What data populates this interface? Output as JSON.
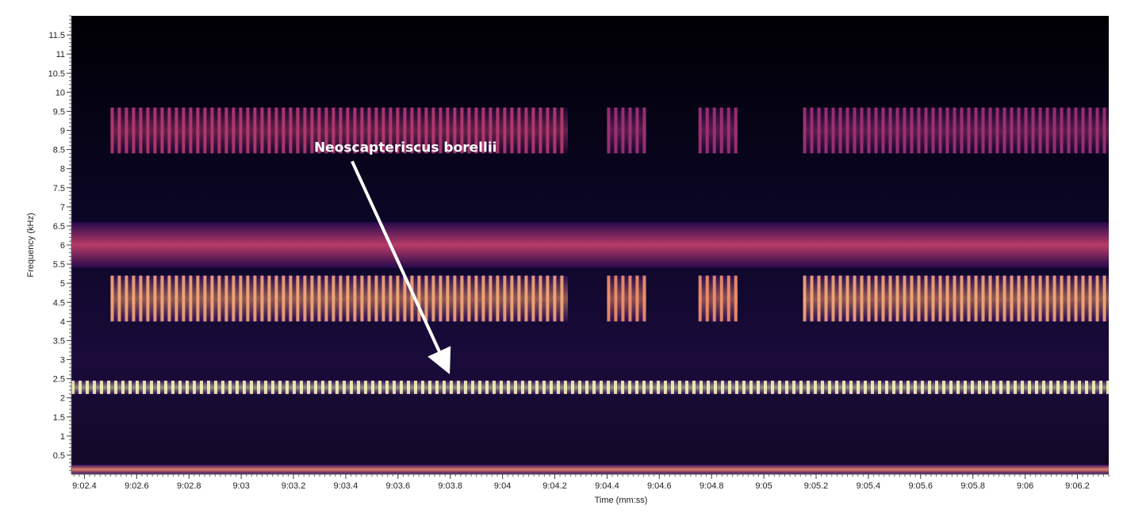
{
  "chart_data": {
    "type": "heatmap",
    "title": "",
    "xlabel": "Time (mm:ss)",
    "ylabel": "Frequency (kHz)",
    "xlim": [
      542.35,
      546.32
    ],
    "ylim": [
      0,
      12
    ],
    "x_ticks": [
      {
        "value": 542.4,
        "label": "9:02.4"
      },
      {
        "value": 542.6,
        "label": "9:02.6"
      },
      {
        "value": 542.8,
        "label": "9:02.8"
      },
      {
        "value": 543.0,
        "label": "9:03"
      },
      {
        "value": 543.2,
        "label": "9:03.2"
      },
      {
        "value": 543.4,
        "label": "9:03.4"
      },
      {
        "value": 543.6,
        "label": "9:03.6"
      },
      {
        "value": 543.8,
        "label": "9:03.8"
      },
      {
        "value": 544.0,
        "label": "9:04"
      },
      {
        "value": 544.2,
        "label": "9:04.2"
      },
      {
        "value": 544.4,
        "label": "9:04.4"
      },
      {
        "value": 544.6,
        "label": "9:04.6"
      },
      {
        "value": 544.8,
        "label": "9:04.8"
      },
      {
        "value": 545.0,
        "label": "9:05"
      },
      {
        "value": 545.2,
        "label": "9:05.2"
      },
      {
        "value": 545.4,
        "label": "9:05.4"
      },
      {
        "value": 545.6,
        "label": "9:05.6"
      },
      {
        "value": 545.8,
        "label": "9:05.8"
      },
      {
        "value": 546.0,
        "label": "9:06"
      },
      {
        "value": 546.2,
        "label": "9:06.2"
      }
    ],
    "y_ticks": [
      {
        "value": 0.5,
        "label": "0.5"
      },
      {
        "value": 1,
        "label": "1"
      },
      {
        "value": 1.5,
        "label": "1.5"
      },
      {
        "value": 2,
        "label": "2"
      },
      {
        "value": 2.5,
        "label": "2.5"
      },
      {
        "value": 3,
        "label": "3"
      },
      {
        "value": 3.5,
        "label": "3.5"
      },
      {
        "value": 4,
        "label": "4"
      },
      {
        "value": 4.5,
        "label": "4.5"
      },
      {
        "value": 5,
        "label": "5"
      },
      {
        "value": 5.5,
        "label": "5.5"
      },
      {
        "value": 6,
        "label": "6"
      },
      {
        "value": 6.5,
        "label": "6.5"
      },
      {
        "value": 7,
        "label": "7"
      },
      {
        "value": 7.5,
        "label": "7.5"
      },
      {
        "value": 8,
        "label": "8"
      },
      {
        "value": 8.5,
        "label": "8.5"
      },
      {
        "value": 9,
        "label": "9"
      },
      {
        "value": 9.5,
        "label": "9.5"
      },
      {
        "value": 10,
        "label": "10"
      },
      {
        "value": 10.5,
        "label": "10.5"
      },
      {
        "value": 11,
        "label": "11"
      },
      {
        "value": 11.5,
        "label": "11.5"
      }
    ],
    "colormap": [
      "#000004",
      "#3b0f70",
      "#8c2981",
      "#de4968",
      "#fe9f6d",
      "#fcfdbf"
    ],
    "bands": [
      {
        "f_low": 0.0,
        "f_high": 0.25,
        "t_start": 542.35,
        "t_end": 546.32,
        "intensity": 0.75,
        "pulsed": false
      },
      {
        "f_low": 2.1,
        "f_high": 2.45,
        "t_start": 542.35,
        "t_end": 546.32,
        "intensity": 1.0,
        "pulsed": true
      },
      {
        "f_low": 4.0,
        "f_high": 5.2,
        "t_start": 542.5,
        "t_end": 544.25,
        "intensity": 0.8,
        "pulsed": true
      },
      {
        "f_low": 4.0,
        "f_high": 5.2,
        "t_start": 544.4,
        "t_end": 544.55,
        "intensity": 0.75,
        "pulsed": true
      },
      {
        "f_low": 4.0,
        "f_high": 5.2,
        "t_start": 544.75,
        "t_end": 544.9,
        "intensity": 0.75,
        "pulsed": true
      },
      {
        "f_low": 4.0,
        "f_high": 5.2,
        "t_start": 545.15,
        "t_end": 546.32,
        "intensity": 0.8,
        "pulsed": true
      },
      {
        "f_low": 5.4,
        "f_high": 6.6,
        "t_start": 542.35,
        "t_end": 546.32,
        "intensity": 0.55,
        "pulsed": false
      },
      {
        "f_low": 8.4,
        "f_high": 9.6,
        "t_start": 542.5,
        "t_end": 544.25,
        "intensity": 0.5,
        "pulsed": true
      },
      {
        "f_low": 8.4,
        "f_high": 9.6,
        "t_start": 544.4,
        "t_end": 544.55,
        "intensity": 0.45,
        "pulsed": true
      },
      {
        "f_low": 8.4,
        "f_high": 9.6,
        "t_start": 544.75,
        "t_end": 544.9,
        "intensity": 0.45,
        "pulsed": true
      },
      {
        "f_low": 8.4,
        "f_high": 9.6,
        "t_start": 545.15,
        "t_end": 546.32,
        "intensity": 0.45,
        "pulsed": true
      }
    ],
    "annotations": [
      {
        "text": "Neoscapteriscus borellii",
        "target_time": 543.8,
        "target_freq": 2.6,
        "label_time": 543.4,
        "label_freq": 8.4
      }
    ]
  }
}
